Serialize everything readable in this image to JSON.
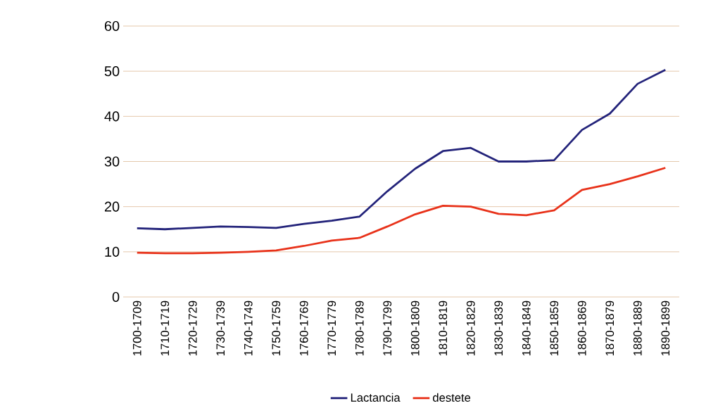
{
  "chart_data": {
    "type": "line",
    "categories": [
      "1700-1709",
      "1710-1719",
      "1720-1729",
      "1730-1739",
      "1740-1749",
      "1750-1759",
      "1760-1769",
      "1770-1779",
      "1780-1789",
      "1790-1799",
      "1800-1809",
      "1810-1819",
      "1820-1829",
      "1830-1839",
      "1840-1849",
      "1850-1859",
      "1860-1869",
      "1870-1879",
      "1880-1889",
      "1890-1899"
    ],
    "series": [
      {
        "name": "Lactancia",
        "color": "#23237a",
        "values": [
          15.2,
          15.0,
          15.3,
          15.6,
          15.5,
          15.3,
          16.2,
          16.9,
          17.8,
          23.4,
          28.4,
          32.3,
          33.0,
          30.0,
          30.0,
          30.3,
          37.0,
          40.6,
          47.2,
          50.3
        ]
      },
      {
        "name": "destete",
        "color": "#e8321a",
        "values": [
          9.8,
          9.7,
          9.7,
          9.8,
          10.0,
          10.3,
          11.3,
          12.5,
          13.1,
          15.6,
          18.3,
          20.2,
          20.0,
          18.4,
          18.1,
          19.2,
          23.7,
          25.0,
          26.7,
          28.6
        ]
      }
    ],
    "ylim": [
      0,
      60
    ],
    "yticks": [
      0,
      10,
      20,
      30,
      40,
      50,
      60
    ],
    "grid": "y",
    "legend": "bottom"
  }
}
